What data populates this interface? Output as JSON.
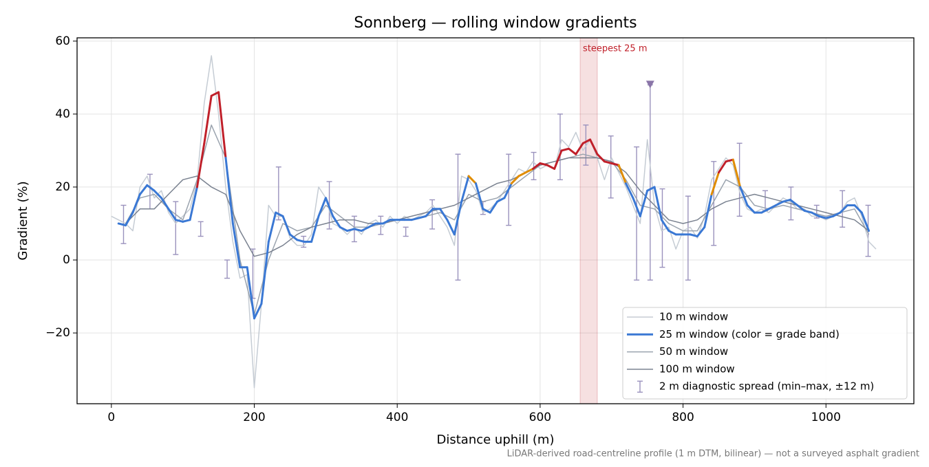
{
  "chart_data": {
    "type": "line",
    "title": "Sonnberg — rolling window gradients",
    "xlabel": "Distance uphill (m)",
    "ylabel": "Gradient (%)",
    "footnote": "LiDAR-derived road-centreline profile (1 m DTM, bilinear) — not a surveyed asphalt gradient",
    "xlim": [
      -48,
      1123
    ],
    "ylim": [
      -39.4,
      60.9
    ],
    "xticks": [
      0,
      200,
      400,
      600,
      800,
      1000
    ],
    "yticks": [
      {
        "value": -20,
        "label": "−20"
      },
      0,
      20,
      40,
      60
    ],
    "grid": true,
    "legend": "lower right",
    "highlight": {
      "x": [
        656,
        680
      ],
      "label": "steepest 25 m",
      "color": "#c0202a"
    },
    "series": [
      {
        "name": "10 m window",
        "color": "#c5ccd4",
        "x": [
          0,
          10,
          20,
          30,
          40,
          50,
          60,
          70,
          80,
          90,
          100,
          110,
          120,
          130,
          140,
          150,
          160,
          170,
          180,
          190,
          200,
          210,
          220,
          230,
          240,
          250,
          260,
          270,
          280,
          290,
          300,
          310,
          320,
          330,
          340,
          350,
          360,
          370,
          380,
          390,
          400,
          410,
          420,
          430,
          440,
          450,
          460,
          470,
          480,
          490,
          500,
          510,
          520,
          530,
          540,
          550,
          560,
          570,
          580,
          590,
          600,
          610,
          620,
          630,
          640,
          650,
          660,
          670,
          680,
          690,
          700,
          710,
          720,
          730,
          740,
          750,
          760,
          770,
          780,
          790,
          800,
          810,
          820,
          830,
          840,
          850,
          860,
          870,
          880,
          890,
          900,
          910,
          920,
          930,
          940,
          950,
          960,
          970,
          980,
          990,
          1000,
          1010,
          1020,
          1030,
          1040,
          1050,
          1060,
          1070
        ],
        "values": [
          12,
          11,
          10,
          8,
          20,
          23,
          17,
          19,
          13,
          10,
          12,
          14,
          22,
          43,
          56,
          40,
          20,
          5,
          -5,
          -4,
          -35,
          -12,
          15,
          12,
          12,
          6,
          4,
          4,
          7,
          20,
          17,
          10,
          9,
          7,
          9,
          7,
          10,
          11,
          9,
          12,
          10,
          12,
          11,
          12,
          13,
          15,
          12,
          9,
          4,
          23,
          22,
          19,
          13,
          14,
          16,
          19,
          22,
          25,
          24,
          27,
          25,
          26,
          25,
          33,
          31,
          35,
          30,
          33,
          28,
          22,
          28,
          24,
          20,
          15,
          10,
          33,
          15,
          8,
          9,
          3,
          8,
          9,
          6,
          12,
          22,
          25,
          28,
          26,
          18,
          14,
          13,
          14,
          13,
          15,
          17,
          16,
          14,
          14,
          12,
          12,
          11,
          12,
          13,
          16,
          17,
          12,
          5,
          3
        ]
      },
      {
        "name": "25 m window (color = grade band)",
        "color": "#3a78d4",
        "band_thresholds": [
          20,
          25
        ],
        "band_colors": [
          "#3a78d4",
          "#e08c00",
          "#c0202a"
        ],
        "x": [
          10,
          20,
          30,
          40,
          50,
          60,
          70,
          80,
          90,
          100,
          110,
          120,
          130,
          140,
          150,
          160,
          170,
          180,
          190,
          200,
          210,
          220,
          230,
          240,
          250,
          260,
          270,
          280,
          290,
          300,
          310,
          320,
          330,
          340,
          350,
          360,
          370,
          380,
          390,
          400,
          410,
          420,
          430,
          440,
          450,
          460,
          470,
          480,
          490,
          500,
          510,
          520,
          530,
          540,
          550,
          560,
          570,
          580,
          590,
          600,
          610,
          620,
          630,
          640,
          650,
          660,
          670,
          680,
          690,
          700,
          710,
          720,
          730,
          740,
          750,
          760,
          770,
          780,
          790,
          800,
          810,
          820,
          830,
          840,
          850,
          860,
          870,
          880,
          890,
          900,
          910,
          920,
          930,
          940,
          950,
          960,
          970,
          980,
          990,
          1000,
          1010,
          1020,
          1030,
          1040,
          1050,
          1060
        ],
        "values": [
          10,
          9.5,
          13,
          18,
          20.5,
          19,
          17,
          14,
          11,
          10.5,
          11,
          20,
          32,
          45,
          46,
          28,
          10,
          -2,
          -2,
          -16,
          -12,
          5,
          13,
          12,
          7,
          5.5,
          5,
          5,
          12,
          17,
          12,
          9,
          8,
          8.5,
          8,
          9,
          10,
          10,
          11,
          11,
          11,
          11,
          11.5,
          12,
          14,
          14,
          11,
          7,
          16,
          23,
          21,
          14,
          13,
          16,
          17,
          21,
          23,
          24,
          25,
          26.5,
          26,
          25,
          30,
          30.5,
          29,
          32,
          33,
          29,
          27,
          26.5,
          26,
          21,
          17,
          12,
          19,
          20,
          11,
          8,
          7,
          7,
          7,
          6.5,
          9,
          18,
          24,
          27,
          27.5,
          20,
          15,
          13,
          13,
          14,
          15,
          16,
          16.5,
          15,
          13.5,
          13,
          12,
          11.5,
          12,
          13,
          15,
          15,
          13,
          8
        ]
      },
      {
        "name": "50 m window",
        "color": "#9aa3ae",
        "x": [
          20,
          40,
          60,
          80,
          100,
          120,
          140,
          160,
          180,
          200,
          220,
          240,
          260,
          280,
          300,
          320,
          340,
          360,
          380,
          400,
          420,
          440,
          460,
          480,
          500,
          520,
          540,
          560,
          580,
          600,
          620,
          640,
          660,
          680,
          700,
          720,
          740,
          760,
          780,
          800,
          820,
          840,
          860,
          880,
          900,
          920,
          940,
          960,
          980,
          1000,
          1020,
          1040,
          1060
        ],
        "values": [
          10,
          17,
          18,
          14,
          11,
          22,
          37,
          28,
          0,
          -15,
          0,
          10,
          8,
          9,
          15,
          12,
          9,
          9,
          10,
          11,
          11,
          12,
          13,
          11,
          18,
          16,
          17,
          20,
          23,
          26,
          27,
          28,
          29,
          28,
          27,
          22,
          15,
          14,
          10,
          8,
          8,
          15,
          22,
          20,
          15,
          14,
          15,
          14,
          13,
          12,
          13,
          14,
          7
        ]
      },
      {
        "name": "100 m window",
        "color": "#7a8290",
        "x": [
          20,
          40,
          60,
          80,
          100,
          120,
          140,
          160,
          180,
          200,
          220,
          240,
          260,
          280,
          300,
          320,
          340,
          360,
          380,
          400,
          420,
          440,
          460,
          480,
          500,
          520,
          540,
          560,
          580,
          600,
          620,
          640,
          660,
          680,
          700,
          720,
          740,
          760,
          780,
          800,
          820,
          840,
          860,
          880,
          900,
          920,
          940,
          960,
          980,
          1000,
          1020,
          1040,
          1060
        ],
        "values": [
          10,
          14,
          14,
          18,
          22,
          23,
          20,
          18,
          8,
          1,
          2,
          4,
          7,
          9,
          10,
          11,
          11,
          10,
          10,
          11,
          12,
          13,
          14,
          15,
          17,
          19,
          21,
          22,
          24,
          26,
          27,
          28,
          28,
          28,
          27,
          24,
          19,
          15,
          11,
          10,
          11,
          14,
          16,
          17,
          18,
          17,
          16,
          15,
          14,
          13,
          12,
          11,
          8
        ]
      }
    ],
    "spread": {
      "name": "2 m diagnostic spread (min–max, ±12 m)",
      "color": "#9a92bd",
      "x": [
        17,
        54,
        90,
        125,
        162,
        198,
        234,
        269,
        305,
        340,
        377,
        412,
        449,
        485,
        520,
        556,
        591,
        628,
        664,
        699,
        735,
        754,
        771,
        807,
        843,
        879,
        915,
        951,
        987,
        1023,
        1059
      ],
      "min": [
        4.5,
        14,
        1.5,
        6.5,
        -5,
        -10.5,
        11,
        3.5,
        8.5,
        5,
        7,
        6.5,
        8.5,
        -5.5,
        12.5,
        9.5,
        22,
        22,
        26,
        17,
        -5.5,
        -5.5,
        -2,
        -5.5,
        4,
        12,
        13.5,
        11,
        11.5,
        9,
        1
      ],
      "max": [
        15,
        23.5,
        16,
        10.5,
        0,
        3,
        25.5,
        6.5,
        21.5,
        12,
        12,
        9,
        16.5,
        29,
        16,
        29,
        29.5,
        40,
        37,
        34,
        31,
        48,
        19.5,
        17.5,
        27,
        32,
        19,
        20,
        15,
        19,
        15
      ],
      "clipped": [
        false,
        false,
        false,
        false,
        false,
        false,
        false,
        false,
        false,
        false,
        false,
        false,
        false,
        false,
        false,
        false,
        false,
        false,
        false,
        false,
        false,
        true,
        false,
        false,
        false,
        false,
        false,
        false,
        false,
        false,
        false
      ]
    }
  }
}
